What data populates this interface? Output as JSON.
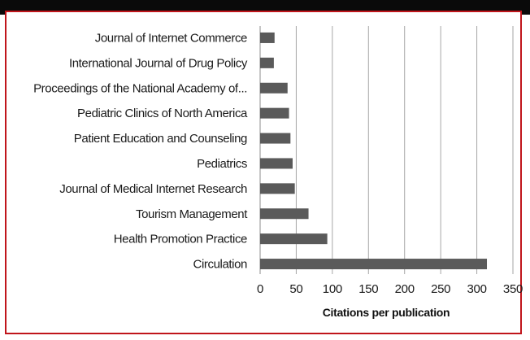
{
  "colors": {
    "bar": "#5a5a5a",
    "grid": "#a6a6a6",
    "frame": "#c0151b",
    "topbar": "#0a0a0a"
  },
  "chart_data": {
    "type": "bar",
    "orientation": "horizontal",
    "categories": [
      "Journal of Internet Commerce",
      "International Journal of Drug Policy",
      "Proceedings of the National Academy of...",
      "Pediatric Clinics of North America",
      "Patient Education and Counseling",
      "Pediatrics",
      "Journal of Medical Internet Research",
      "Tourism Management",
      "Health Promotion Practice",
      "Circulation"
    ],
    "values": [
      20,
      19,
      38,
      40,
      42,
      45,
      48,
      67,
      93,
      314
    ],
    "xticks": [
      "0",
      "50",
      "100",
      "150",
      "200",
      "250",
      "300",
      "350"
    ],
    "xlim": [
      0,
      350
    ],
    "xlabel": "Citations per publication",
    "ylabel": "",
    "title": "",
    "grid": "vertical"
  }
}
